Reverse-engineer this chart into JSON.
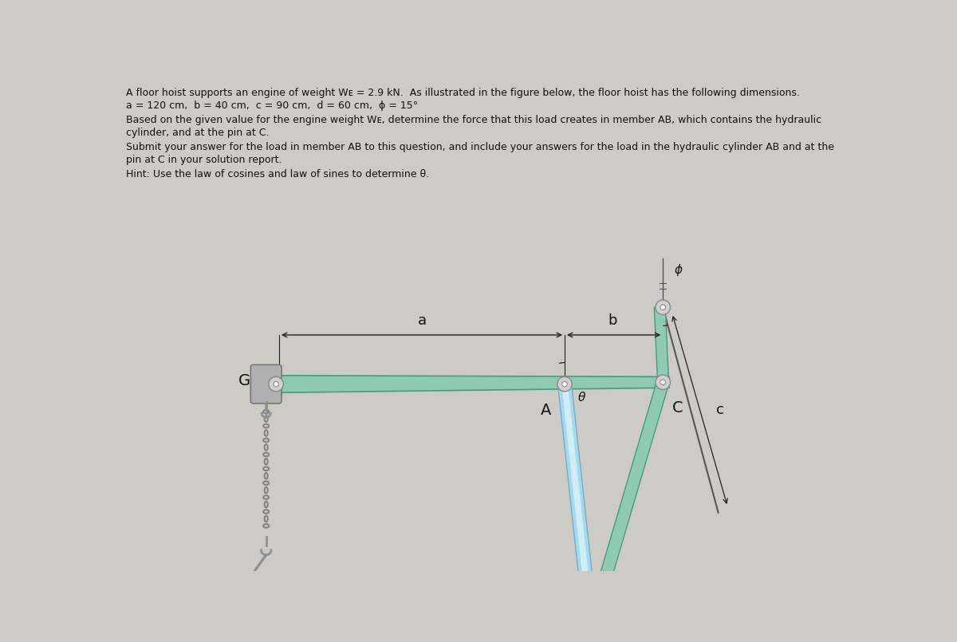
{
  "bg_color": "#cccbc6",
  "text_color": "#111111",
  "line1": "A floor hoist supports an engine of weight Wᴇ = 2.9 kN.  As illustrated in the figure below, the floor hoist has the following dimensions.",
  "line2": "a = 120 cm,  b = 40 cm,  c = 90 cm,  d = 60 cm,  ϕ = 15°",
  "line3": "Based on the given value for the engine weight Wᴇ, determine the force that this load creates in member AB, which contains the hydraulic",
  "line4": "cylinder, and at the pin at C.",
  "line5": "Submit your answer for the load in member AB to this question, and include your answers for the load in the hydraulic cylinder AB and at the",
  "line6": "pin at C in your solution report.",
  "line7": "Hint: Use the law of cosines and law of sines to determine θ.",
  "beam_fill": "#8ecbb0",
  "beam_edge": "#4a9a7a",
  "leg_fill": "#8ecbb0",
  "leg_edge": "#4a9a7a",
  "hyd_fill": "#a8d8ea",
  "hyd_edge": "#6ab0cc",
  "hyd_inner": "#d0eef8",
  "bracket_fill": "#b0b0b0",
  "bracket_edge": "#787878",
  "chain_color": "#808080",
  "pin_fill": "#d0d0d0",
  "pin_edge": "#888888",
  "hook_color": "#909090",
  "dim_color": "#222222",
  "label_color": "#111111"
}
